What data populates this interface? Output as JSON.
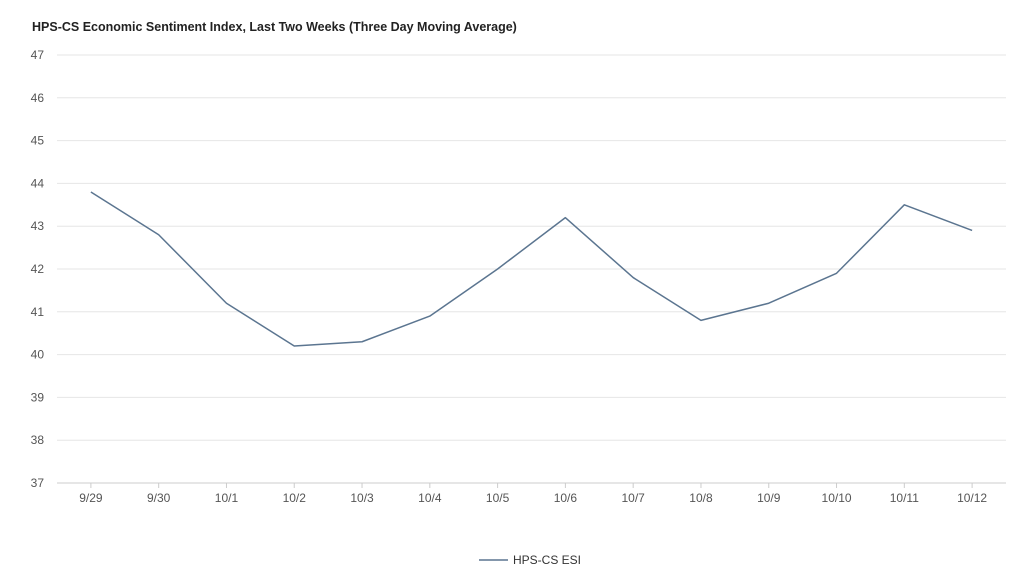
{
  "chart_data": {
    "type": "line",
    "title": "HPS-CS Economic Sentiment Index, Last Two Weeks (Three Day Moving Average)",
    "xlabel": "",
    "ylabel": "",
    "categories": [
      "9/29",
      "9/30",
      "10/1",
      "10/2",
      "10/3",
      "10/4",
      "10/5",
      "10/6",
      "10/7",
      "10/8",
      "10/9",
      "10/10",
      "10/11",
      "10/12"
    ],
    "series": [
      {
        "name": "HPS-CS ESI",
        "color": "#5b7590",
        "values": [
          43.8,
          42.8,
          41.2,
          40.2,
          40.3,
          40.9,
          42.0,
          43.2,
          41.8,
          40.8,
          41.2,
          41.9,
          43.5,
          42.9
        ]
      }
    ],
    "ylim": [
      37,
      47
    ],
    "yticks": [
      "37",
      "38",
      "39",
      "40",
      "41",
      "42",
      "43",
      "44",
      "45",
      "46",
      "47"
    ],
    "grid": true,
    "legend_position": "bottom-center"
  }
}
